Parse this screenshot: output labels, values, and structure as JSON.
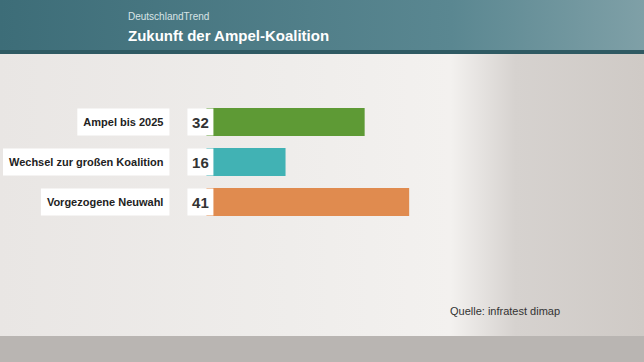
{
  "chart_data": {
    "type": "bar",
    "orientation": "horizontal",
    "subtitle": "DeutschlandTrend",
    "title": "Zukunft der Ampel-Koalition",
    "categories": [
      "Ampel bis 2025",
      "Wechsel zur großen Koalition",
      "Vorgezogene Neuwahl"
    ],
    "values": [
      32,
      16,
      41
    ],
    "colors": [
      "#5e9a35",
      "#41b2b4",
      "#e08b4f"
    ],
    "xlim": [
      0,
      80
    ],
    "data_labels": true,
    "tick_labels": false,
    "grid": false,
    "annotations": [
      "Quelle: infratest dimap"
    ]
  }
}
